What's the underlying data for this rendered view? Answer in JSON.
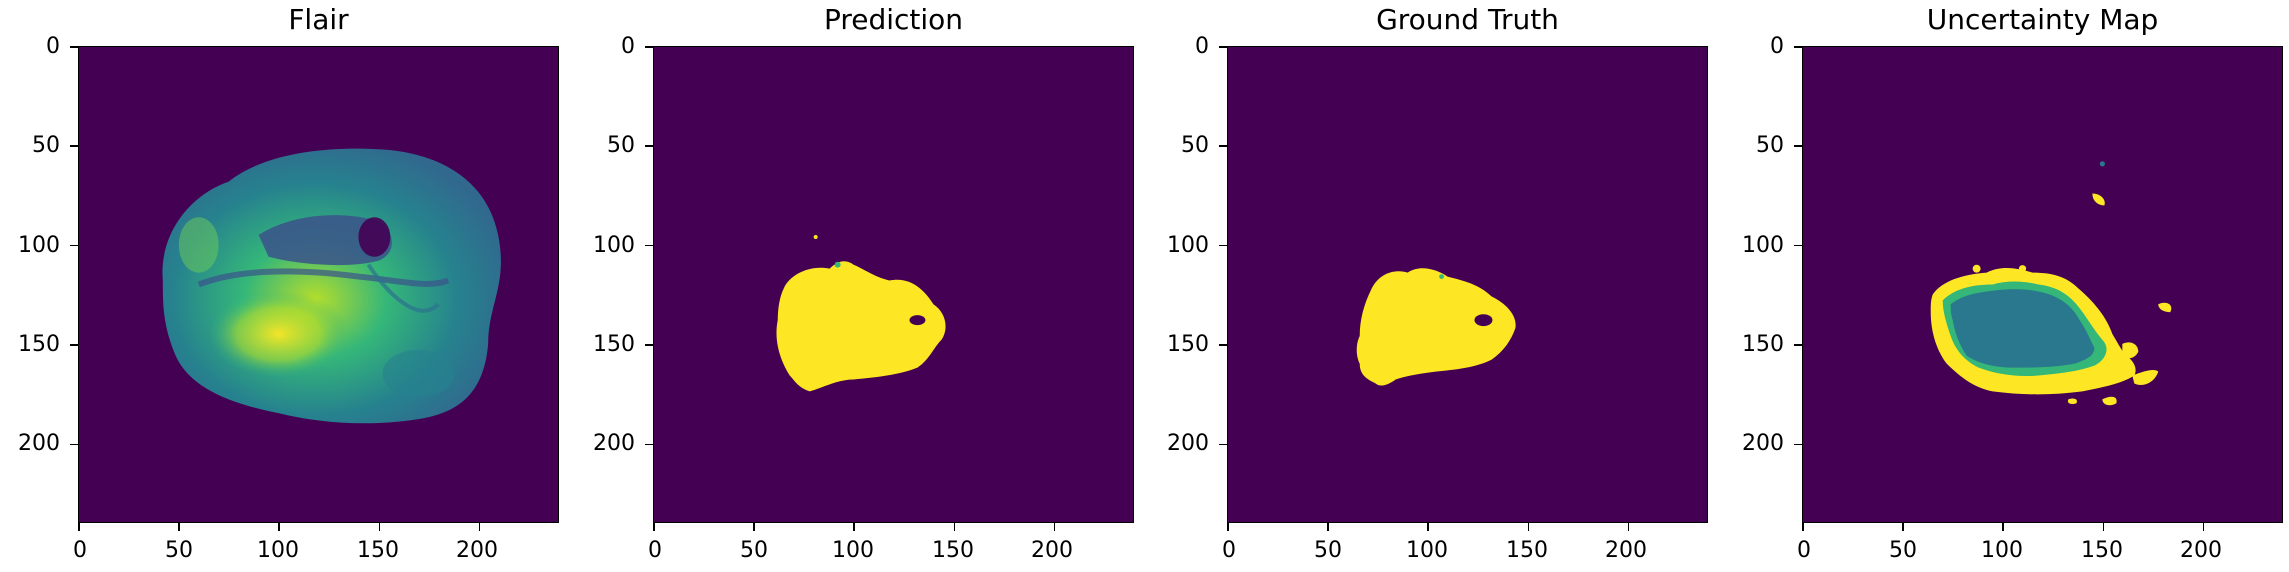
{
  "colors": {
    "background": "#440154",
    "yellow": "#fde725",
    "teal": "#2a788e",
    "green": "#35b779",
    "bluegreen": "#31688e",
    "lightgreen": "#6ece58"
  },
  "panels": [
    {
      "id": "flair",
      "title": "Flair"
    },
    {
      "id": "prediction",
      "title": "Prediction"
    },
    {
      "id": "ground-truth",
      "title": "Ground Truth"
    },
    {
      "id": "uncertainty",
      "title": "Uncertainty Map"
    }
  ],
  "axes": {
    "yticks": [
      "0",
      "50",
      "100",
      "150",
      "200"
    ],
    "xticks": [
      "0",
      "50",
      "100",
      "150",
      "200"
    ],
    "xlim": [
      0,
      240
    ],
    "ylim": [
      240,
      0
    ]
  }
}
